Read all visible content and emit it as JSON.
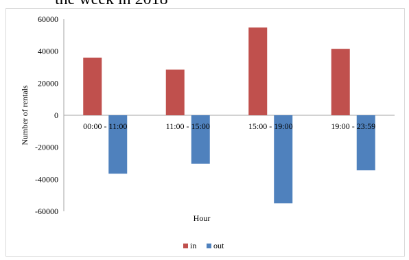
{
  "title_fragment": "the week in 2018",
  "chart_data": {
    "type": "bar",
    "title": "",
    "xlabel": "Hour",
    "ylabel": "Number of rentals",
    "ylim": [
      -60000,
      60000
    ],
    "yticks": [
      60000,
      40000,
      20000,
      0,
      -20000,
      -40000,
      -60000
    ],
    "categories": [
      "00:00 - 11:00",
      "11:00 - 15:00",
      "15:00 - 19:00",
      "19:00 - 23:59"
    ],
    "series": [
      {
        "name": "in",
        "color": "#c0504d",
        "values": [
          36000,
          28500,
          54800,
          41500
        ]
      },
      {
        "name": "out",
        "color": "#4f81bd",
        "values": [
          -36500,
          -30300,
          -55000,
          -34400
        ]
      }
    ],
    "grid": false,
    "legend_position": "bottom"
  }
}
